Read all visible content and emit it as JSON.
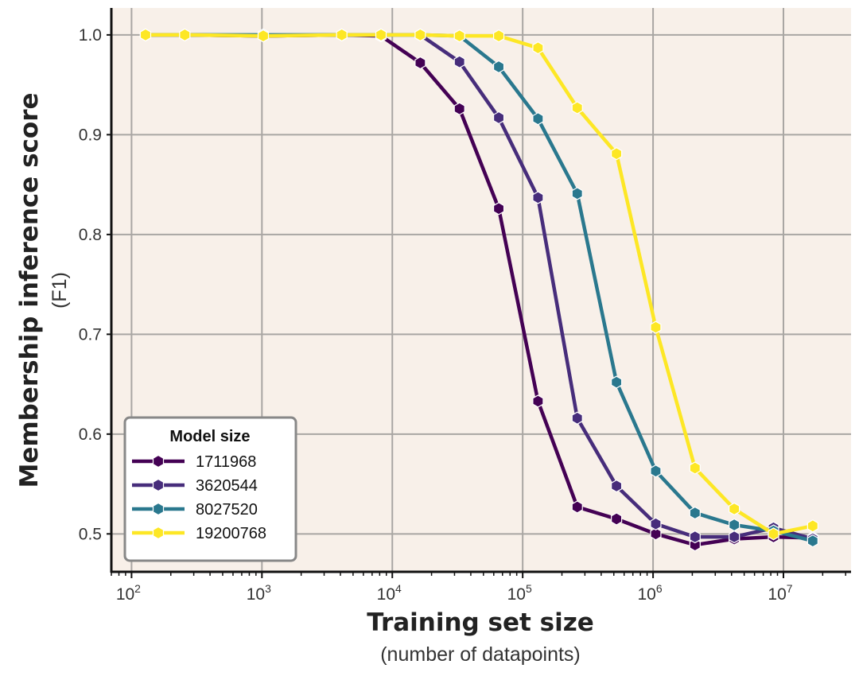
{
  "chart_data": {
    "type": "line",
    "xscale": "log",
    "xlim": [
      70,
      33000000
    ],
    "ylim": [
      0.462,
      1.027
    ],
    "yticks": [
      0.5,
      0.6,
      0.7,
      0.8,
      0.9,
      1.0
    ],
    "ytick_labels": [
      "0.5",
      "0.6",
      "0.7",
      "0.8",
      "0.9",
      "1.0"
    ],
    "xtick_exponents": [
      2,
      3,
      4,
      5,
      6,
      7
    ],
    "xtick_base": "10",
    "grid": true,
    "xlabel": "Training set size",
    "xlabel_sub": "(number of datapoints)",
    "ylabel": "Membership inference score",
    "ylabel_sub": "(F1)",
    "legend": {
      "title": "Model size",
      "position": "lower-left"
    },
    "x": [
      128,
      256,
      1024,
      4096,
      8192,
      16384,
      32768,
      65536,
      131072,
      262144,
      524288,
      1048576,
      2097152,
      4194304,
      8388608,
      16777216
    ],
    "series": [
      {
        "name": "1711968",
        "color": "#440154",
        "values": [
          1.0,
          1.0,
          0.999,
          1.0,
          0.999,
          0.972,
          0.926,
          0.826,
          0.633,
          0.527,
          0.515,
          0.5,
          0.489,
          0.495,
          0.497,
          0.496
        ]
      },
      {
        "name": "3620544",
        "color": "#472d7b",
        "values": [
          1.0,
          1.0,
          0.999,
          1.0,
          1.0,
          1.0,
          0.973,
          0.917,
          0.837,
          0.616,
          0.548,
          0.51,
          0.497,
          0.497,
          0.506,
          0.495
        ]
      },
      {
        "name": "8027520",
        "color": "#2a788e",
        "values": [
          1.0,
          1.0,
          1.0,
          1.0,
          1.0,
          1.0,
          0.999,
          0.968,
          0.916,
          0.841,
          0.652,
          0.563,
          0.521,
          0.509,
          0.503,
          0.493
        ]
      },
      {
        "name": "19200768",
        "color": "#fde725",
        "values": [
          1.0,
          1.0,
          0.999,
          1.0,
          1.0,
          1.0,
          0.999,
          0.999,
          0.987,
          0.927,
          0.881,
          0.707,
          0.566,
          0.525,
          0.5,
          0.508
        ]
      }
    ]
  }
}
